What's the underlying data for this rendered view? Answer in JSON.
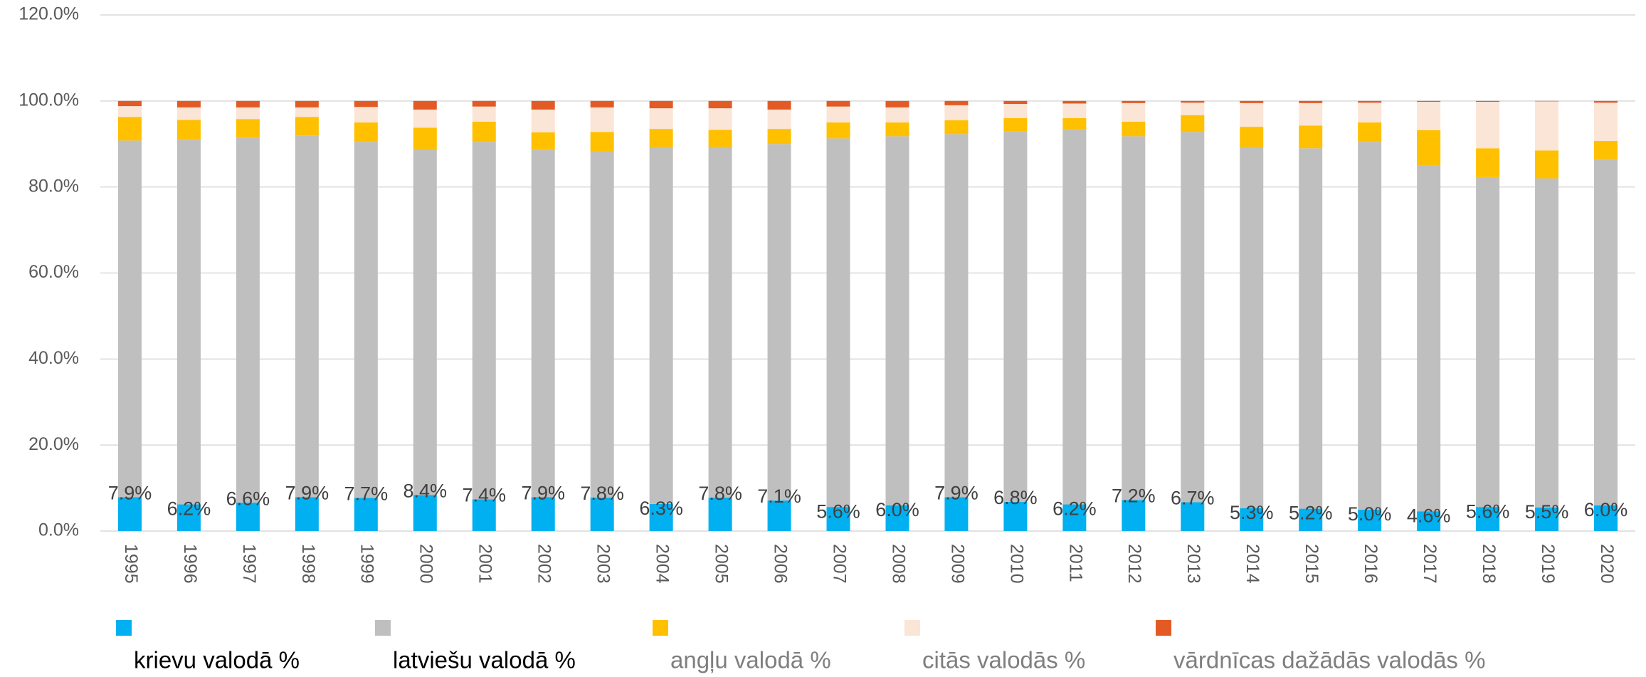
{
  "chart_data": {
    "type": "stacked_bar",
    "categories": [
      "1995",
      "1996",
      "1997",
      "1998",
      "1999",
      "2000",
      "2001",
      "2002",
      "2003",
      "2004",
      "2005",
      "2006",
      "2007",
      "2008",
      "2009",
      "2010",
      "2011",
      "2012",
      "2013",
      "2014",
      "2015",
      "2016",
      "2017",
      "2018",
      "2019",
      "2020"
    ],
    "series": [
      {
        "name": "krievu valodā %",
        "color": "#00b0f0",
        "values": [
          7.9,
          6.2,
          6.6,
          7.9,
          7.7,
          8.4,
          7.4,
          7.9,
          7.8,
          6.3,
          7.8,
          7.1,
          5.6,
          6.0,
          7.9,
          6.8,
          6.2,
          7.2,
          6.7,
          5.3,
          5.2,
          5.0,
          4.6,
          5.6,
          5.5,
          6.0
        ],
        "value_labels": [
          "7.9%",
          "6.2%",
          "6.6%",
          "7.9%",
          "7.7%",
          "8.4%",
          "7.4%",
          "7.9%",
          "7.8%",
          "6.3%",
          "7.8%",
          "7.1%",
          "5.6%",
          "6.0%",
          "7.9%",
          "6.8%",
          "6.2%",
          "7.2%",
          "6.7%",
          "5.3%",
          "5.2%",
          "5.0%",
          "4.6%",
          "5.6%",
          "5.5%",
          "6.0%"
        ]
      },
      {
        "name": "latviešu valodā %",
        "color": "#bfbfbf",
        "values": [
          82.9,
          84.8,
          84.9,
          84.1,
          82.8,
          80.4,
          83.1,
          80.7,
          80.4,
          83.0,
          81.5,
          82.9,
          85.7,
          85.8,
          84.4,
          86.2,
          87.3,
          84.6,
          86.1,
          84.0,
          83.8,
          85.5,
          80.4,
          76.7,
          76.5,
          80.5
        ]
      },
      {
        "name": "angļu valodā %",
        "color": "#ffc000",
        "values": [
          5.5,
          4.6,
          4.3,
          4.3,
          4.5,
          5.0,
          4.7,
          4.1,
          4.6,
          4.2,
          4.0,
          3.5,
          3.7,
          3.2,
          3.2,
          3.0,
          2.5,
          3.4,
          3.9,
          4.7,
          5.3,
          4.5,
          8.2,
          6.7,
          6.5,
          4.2
        ]
      },
      {
        "name": "citās valodās %",
        "color": "#fbe5d6",
        "values": [
          2.5,
          2.9,
          2.7,
          2.2,
          3.6,
          4.2,
          3.5,
          5.3,
          5.7,
          4.8,
          5.0,
          4.5,
          3.7,
          3.5,
          3.5,
          3.3,
          3.4,
          4.3,
          2.9,
          5.5,
          5.2,
          4.6,
          6.6,
          10.8,
          11.4,
          8.9
        ]
      },
      {
        "name": "vārdnīcas dažādās valodās %",
        "color": "#e35b24",
        "values": [
          1.2,
          1.5,
          1.5,
          1.5,
          1.4,
          2.0,
          1.3,
          2.0,
          1.5,
          1.7,
          1.7,
          2.0,
          1.3,
          1.5,
          1.0,
          0.7,
          0.6,
          0.5,
          0.4,
          0.5,
          0.5,
          0.4,
          0.2,
          0.2,
          0.1,
          0.4
        ]
      }
    ],
    "ylim": [
      0,
      120
    ],
    "yticks": [
      {
        "value": 0,
        "label": "0.0%"
      },
      {
        "value": 20,
        "label": "20.0%"
      },
      {
        "value": 40,
        "label": "40.0%"
      },
      {
        "value": 60,
        "label": "60.0%"
      },
      {
        "value": 80,
        "label": "80.0%"
      },
      {
        "value": 100,
        "label": "100.0%"
      },
      {
        "value": 120,
        "label": "120.0%"
      }
    ],
    "grid": true
  }
}
